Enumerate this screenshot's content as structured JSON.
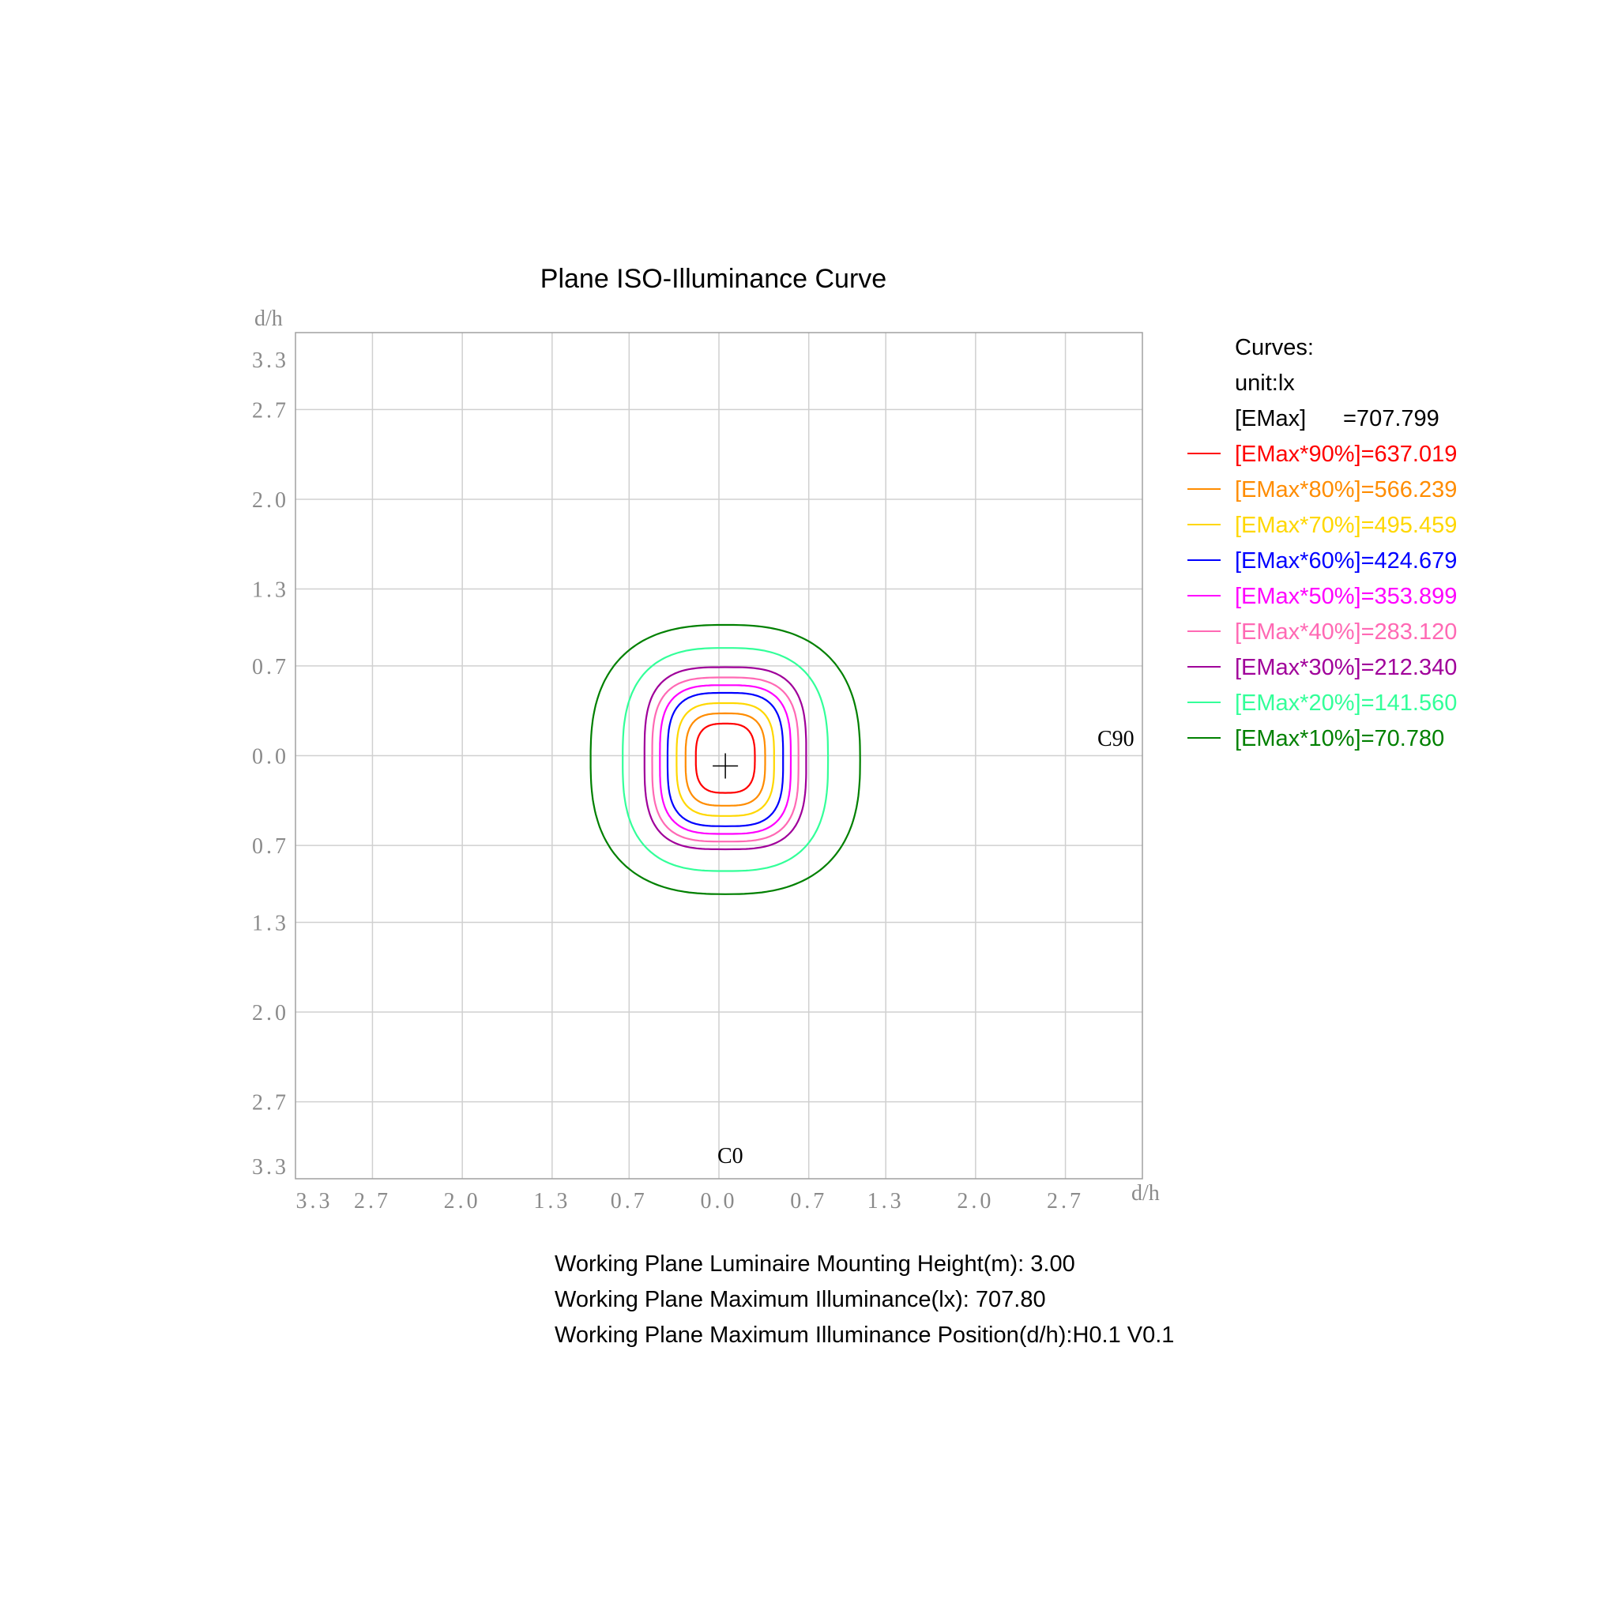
{
  "chart_data": {
    "type": "contour",
    "title": "Plane ISO-Illuminance Curve",
    "xlabel": "d/h",
    "ylabel": "d/h",
    "xlim": [
      -3.3,
      3.3
    ],
    "ylim": [
      -3.3,
      3.3
    ],
    "grid": true,
    "x_ticks": [
      {
        "value": -3.3,
        "label": "3.3"
      },
      {
        "value": -2.7,
        "label": "2.7"
      },
      {
        "value": -2.0,
        "label": "2.0"
      },
      {
        "value": -1.3,
        "label": "1.3"
      },
      {
        "value": -0.7,
        "label": "0.7"
      },
      {
        "value": 0.0,
        "label": "0.0"
      },
      {
        "value": 0.7,
        "label": "0.7"
      },
      {
        "value": 1.3,
        "label": "1.3"
      },
      {
        "value": 2.0,
        "label": "2.0"
      },
      {
        "value": 2.7,
        "label": "2.7"
      }
    ],
    "y_ticks": [
      {
        "value": 3.3,
        "label": "3.3"
      },
      {
        "value": 2.7,
        "label": "2.7"
      },
      {
        "value": 2.0,
        "label": "2.0"
      },
      {
        "value": 1.3,
        "label": "1.3"
      },
      {
        "value": 0.7,
        "label": "0.7"
      },
      {
        "value": 0.0,
        "label": "0.0"
      },
      {
        "value": -0.7,
        "label": "0.7"
      },
      {
        "value": -1.3,
        "label": "1.3"
      },
      {
        "value": -2.0,
        "label": "2.0"
      },
      {
        "value": -2.7,
        "label": "2.7"
      },
      {
        "value": -3.3,
        "label": "3.3"
      }
    ],
    "direction_labels": {
      "c0": "C0",
      "c90": "C90"
    },
    "center": {
      "x": 0.05,
      "y": -0.08
    },
    "legend_position": "right",
    "legend": {
      "heading": "Curves:",
      "unit": "unit:lx",
      "emax_label": "[EMax]",
      "emax_value": "=707.799"
    },
    "series": [
      {
        "name": "[EMax*90%]=637.019",
        "color": "#ff0000",
        "rx": 0.23,
        "ry": 0.27,
        "cy": -0.02,
        "exponent": 3.0
      },
      {
        "name": "[EMax*80%]=566.239",
        "color": "#ff8c00",
        "rx": 0.31,
        "ry": 0.36,
        "cy": -0.03,
        "exponent": 3.2
      },
      {
        "name": "[EMax*70%]=495.459",
        "color": "#ffd700",
        "rx": 0.38,
        "ry": 0.44,
        "cy": -0.03,
        "exponent": 3.2
      },
      {
        "name": "[EMax*60%]=424.679",
        "color": "#0000ff",
        "rx": 0.45,
        "ry": 0.52,
        "cy": -0.03,
        "exponent": 3.3
      },
      {
        "name": "[EMax*50%]=353.899",
        "color": "#ff00ff",
        "rx": 0.51,
        "ry": 0.58,
        "cy": -0.03,
        "exponent": 3.3
      },
      {
        "name": "[EMax*40%]=283.120",
        "color": "#ff69b4",
        "rx": 0.57,
        "ry": 0.64,
        "cy": -0.03,
        "exponent": 3.3
      },
      {
        "name": "[EMax*30%]=212.340",
        "color": "#a0009a",
        "rx": 0.63,
        "ry": 0.71,
        "cy": -0.02,
        "exponent": 3.3
      },
      {
        "name": "[EMax*20%]=141.560",
        "color": "#33ff99",
        "rx": 0.8,
        "ry": 0.87,
        "cy": -0.03,
        "exponent": 2.8
      },
      {
        "name": "[EMax*10%]=70.780",
        "color": "#008000",
        "rx": 1.05,
        "ry": 1.05,
        "cy": -0.03,
        "exponent": 2.6
      }
    ],
    "footer": [
      "Working Plane Luminaire Mounting Height(m): 3.00",
      "Working Plane Maximum Illuminance(lx): 707.80",
      "Working Plane Maximum Illuminance Position(d/h):H0.1 V0.1"
    ]
  },
  "colors": {
    "grid": "#d0d0d0",
    "frame": "#a0a0a0",
    "tick_text": "#8a8a8a"
  }
}
